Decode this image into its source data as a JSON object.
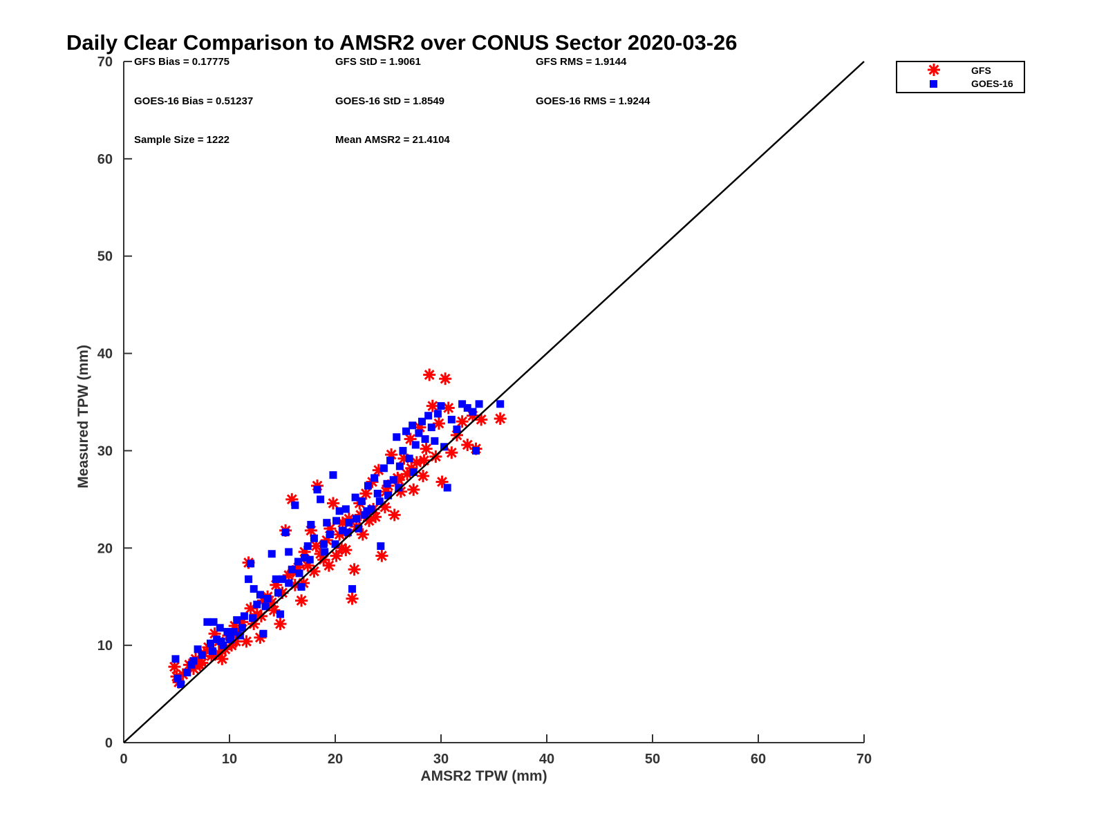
{
  "chart_data": {
    "type": "scatter",
    "title": "Daily Clear Comparison to AMSR2 over CONUS Sector 2020-03-26",
    "xlabel": "AMSR2 TPW (mm)",
    "ylabel": "Measured TPW (mm)",
    "xlim": [
      0,
      70
    ],
    "ylim": [
      0,
      70
    ],
    "xticks": [
      "0",
      "10",
      "20",
      "30",
      "40",
      "50",
      "60",
      "70"
    ],
    "yticks": [
      "0",
      "10",
      "20",
      "30",
      "40",
      "50",
      "60",
      "70"
    ],
    "grid": false,
    "legend_position": "top-right, outside plot",
    "reference_line": {
      "x": [
        0,
        70
      ],
      "y": [
        0,
        70
      ],
      "color": "#000000"
    },
    "stats": {
      "gfs_bias": "GFS Bias = 0.17775",
      "gfs_std": "GFS StD = 1.9061",
      "gfs_rms": "GFS RMS = 1.9144",
      "goes_bias": "GOES-16 Bias = 0.51237",
      "goes_std": "GOES-16 StD = 1.8549",
      "goes_rms": "GOES-16 RMS = 1.9244",
      "sample_size": "Sample Size = 1222",
      "mean_amsr2": "Mean AMSR2 = 21.4104"
    },
    "series": [
      {
        "name": "GFS",
        "marker": "asterisk",
        "color": "#ff0000",
        "points": [
          [
            4.8,
            7.8
          ],
          [
            5.0,
            6.8
          ],
          [
            5.2,
            6.2
          ],
          [
            5.6,
            7.0
          ],
          [
            6.2,
            8.0
          ],
          [
            6.8,
            8.6
          ],
          [
            7.2,
            8.0
          ],
          [
            7.6,
            9.2
          ],
          [
            8.0,
            9.8
          ],
          [
            8.3,
            8.9
          ],
          [
            8.6,
            11.2
          ],
          [
            9.0,
            10.4
          ],
          [
            9.3,
            8.6
          ],
          [
            9.6,
            9.6
          ],
          [
            9.9,
            11.0
          ],
          [
            10.2,
            10.0
          ],
          [
            10.5,
            12.0
          ],
          [
            10.8,
            11.2
          ],
          [
            11.2,
            12.4
          ],
          [
            11.6,
            10.4
          ],
          [
            11.8,
            18.5
          ],
          [
            12.0,
            13.8
          ],
          [
            12.3,
            12.2
          ],
          [
            12.6,
            13.2
          ],
          [
            12.9,
            10.8
          ],
          [
            13.2,
            14.6
          ],
          [
            13.6,
            15.0
          ],
          [
            14.0,
            14.4
          ],
          [
            14.4,
            16.2
          ],
          [
            14.8,
            12.2
          ],
          [
            15.0,
            15.4
          ],
          [
            15.3,
            21.8
          ],
          [
            15.6,
            17.2
          ],
          [
            15.9,
            25.0
          ],
          [
            16.2,
            16.2
          ],
          [
            16.5,
            18.0
          ],
          [
            16.8,
            14.6
          ],
          [
            17.1,
            19.6
          ],
          [
            17.4,
            18.2
          ],
          [
            17.7,
            21.8
          ],
          [
            18.0,
            17.6
          ],
          [
            18.3,
            26.4
          ],
          [
            18.6,
            19.4
          ],
          [
            18.9,
            18.8
          ],
          [
            19.2,
            20.8
          ],
          [
            19.5,
            22.0
          ],
          [
            19.8,
            24.6
          ],
          [
            20.1,
            19.2
          ],
          [
            20.4,
            21.4
          ],
          [
            20.7,
            22.6
          ],
          [
            21.0,
            19.8
          ],
          [
            21.3,
            23.0
          ],
          [
            21.6,
            14.8
          ],
          [
            21.8,
            17.8
          ],
          [
            22.0,
            22.2
          ],
          [
            22.3,
            24.6
          ],
          [
            22.6,
            21.4
          ],
          [
            22.9,
            25.6
          ],
          [
            23.2,
            22.8
          ],
          [
            23.5,
            26.8
          ],
          [
            23.8,
            23.2
          ],
          [
            24.1,
            28.0
          ],
          [
            24.4,
            19.2
          ],
          [
            24.7,
            24.2
          ],
          [
            25.0,
            26.4
          ],
          [
            25.3,
            29.6
          ],
          [
            25.6,
            23.4
          ],
          [
            25.9,
            27.2
          ],
          [
            26.2,
            25.8
          ],
          [
            26.5,
            29.2
          ],
          [
            26.8,
            27.6
          ],
          [
            27.1,
            31.2
          ],
          [
            27.4,
            26.0
          ],
          [
            27.7,
            28.8
          ],
          [
            28.0,
            32.4
          ],
          [
            28.3,
            27.4
          ],
          [
            28.6,
            30.2
          ],
          [
            28.9,
            37.8
          ],
          [
            29.2,
            34.6
          ],
          [
            29.5,
            29.4
          ],
          [
            29.8,
            32.8
          ],
          [
            30.1,
            26.8
          ],
          [
            30.4,
            37.4
          ],
          [
            30.7,
            34.4
          ],
          [
            31.0,
            29.8
          ],
          [
            31.5,
            31.6
          ],
          [
            32.0,
            33.0
          ],
          [
            32.5,
            30.6
          ],
          [
            33.0,
            33.6
          ],
          [
            33.3,
            30.2
          ],
          [
            33.8,
            33.2
          ],
          [
            35.6,
            33.3
          ],
          [
            21.0,
            21.6
          ],
          [
            19.4,
            18.2
          ],
          [
            18.2,
            20.2
          ],
          [
            17.0,
            16.4
          ],
          [
            16.0,
            17.6
          ],
          [
            14.2,
            13.6
          ],
          [
            13.0,
            13.0
          ],
          [
            10.6,
            10.4
          ],
          [
            9.0,
            9.2
          ],
          [
            7.4,
            8.2
          ],
          [
            6.6,
            7.6
          ],
          [
            23.6,
            24.0
          ],
          [
            24.8,
            25.8
          ],
          [
            26.0,
            27.0
          ],
          [
            27.2,
            28.2
          ],
          [
            28.4,
            29.0
          ],
          [
            22.4,
            23.4
          ],
          [
            20.6,
            20.0
          ]
        ]
      },
      {
        "name": "GOES-16",
        "marker": "square",
        "color": "#0000ff",
        "points": [
          [
            4.9,
            8.6
          ],
          [
            5.1,
            6.6
          ],
          [
            5.4,
            6.0
          ],
          [
            6.0,
            7.2
          ],
          [
            6.6,
            8.4
          ],
          [
            7.0,
            9.6
          ],
          [
            7.4,
            9.0
          ],
          [
            7.9,
            12.4
          ],
          [
            8.2,
            10.2
          ],
          [
            8.5,
            12.4
          ],
          [
            8.8,
            10.6
          ],
          [
            9.1,
            11.8
          ],
          [
            9.4,
            10.0
          ],
          [
            9.8,
            11.4
          ],
          [
            10.1,
            10.6
          ],
          [
            10.4,
            11.4
          ],
          [
            10.7,
            12.6
          ],
          [
            11.0,
            11.0
          ],
          [
            11.4,
            13.0
          ],
          [
            11.8,
            16.8
          ],
          [
            12.0,
            18.4
          ],
          [
            12.3,
            15.8
          ],
          [
            12.6,
            14.2
          ],
          [
            12.9,
            15.2
          ],
          [
            13.2,
            11.2
          ],
          [
            13.6,
            14.8
          ],
          [
            14.0,
            19.4
          ],
          [
            14.4,
            16.8
          ],
          [
            14.8,
            13.2
          ],
          [
            15.0,
            16.8
          ],
          [
            15.3,
            21.6
          ],
          [
            15.6,
            19.6
          ],
          [
            15.9,
            17.8
          ],
          [
            16.2,
            24.4
          ],
          [
            16.5,
            18.6
          ],
          [
            16.8,
            16.0
          ],
          [
            17.1,
            19.0
          ],
          [
            17.4,
            20.2
          ],
          [
            17.7,
            22.4
          ],
          [
            18.0,
            21.0
          ],
          [
            18.3,
            26.0
          ],
          [
            18.6,
            25.0
          ],
          [
            18.9,
            20.4
          ],
          [
            19.2,
            22.6
          ],
          [
            19.5,
            21.4
          ],
          [
            19.8,
            27.5
          ],
          [
            20.1,
            22.8
          ],
          [
            20.4,
            23.8
          ],
          [
            20.7,
            21.8
          ],
          [
            21.0,
            24.0
          ],
          [
            21.3,
            22.6
          ],
          [
            21.6,
            15.8
          ],
          [
            21.9,
            25.2
          ],
          [
            22.2,
            22.0
          ],
          [
            22.5,
            24.8
          ],
          [
            22.8,
            23.4
          ],
          [
            23.1,
            26.4
          ],
          [
            23.4,
            24.0
          ],
          [
            23.7,
            27.2
          ],
          [
            24.0,
            25.6
          ],
          [
            24.3,
            20.2
          ],
          [
            24.6,
            28.2
          ],
          [
            24.9,
            26.6
          ],
          [
            25.2,
            29.0
          ],
          [
            25.5,
            27.0
          ],
          [
            25.8,
            31.4
          ],
          [
            26.1,
            28.4
          ],
          [
            26.4,
            30.0
          ],
          [
            26.7,
            32.0
          ],
          [
            27.0,
            29.2
          ],
          [
            27.3,
            32.6
          ],
          [
            27.6,
            30.6
          ],
          [
            27.9,
            31.8
          ],
          [
            28.2,
            33.0
          ],
          [
            28.5,
            31.2
          ],
          [
            28.8,
            33.6
          ],
          [
            29.1,
            32.4
          ],
          [
            29.4,
            31.0
          ],
          [
            29.7,
            33.8
          ],
          [
            30.0,
            34.6
          ],
          [
            30.3,
            30.4
          ],
          [
            30.6,
            26.2
          ],
          [
            31.0,
            33.2
          ],
          [
            31.5,
            32.2
          ],
          [
            32.0,
            34.8
          ],
          [
            32.5,
            34.4
          ],
          [
            33.0,
            34.0
          ],
          [
            33.3,
            30.0
          ],
          [
            33.6,
            34.8
          ],
          [
            35.6,
            34.8
          ],
          [
            19.0,
            19.6
          ],
          [
            20.0,
            20.4
          ],
          [
            21.2,
            21.6
          ],
          [
            22.0,
            23.0
          ],
          [
            23.0,
            23.8
          ],
          [
            24.2,
            24.8
          ],
          [
            25.0,
            25.4
          ],
          [
            26.0,
            26.2
          ],
          [
            17.6,
            18.8
          ],
          [
            16.6,
            17.4
          ],
          [
            15.6,
            16.4
          ],
          [
            14.6,
            15.4
          ],
          [
            13.4,
            14.0
          ],
          [
            12.2,
            12.8
          ],
          [
            11.2,
            11.8
          ],
          [
            10.0,
            10.8
          ],
          [
            9.2,
            10.4
          ],
          [
            8.4,
            9.4
          ],
          [
            6.4,
            8.0
          ],
          [
            27.4,
            27.8
          ]
        ]
      }
    ]
  }
}
